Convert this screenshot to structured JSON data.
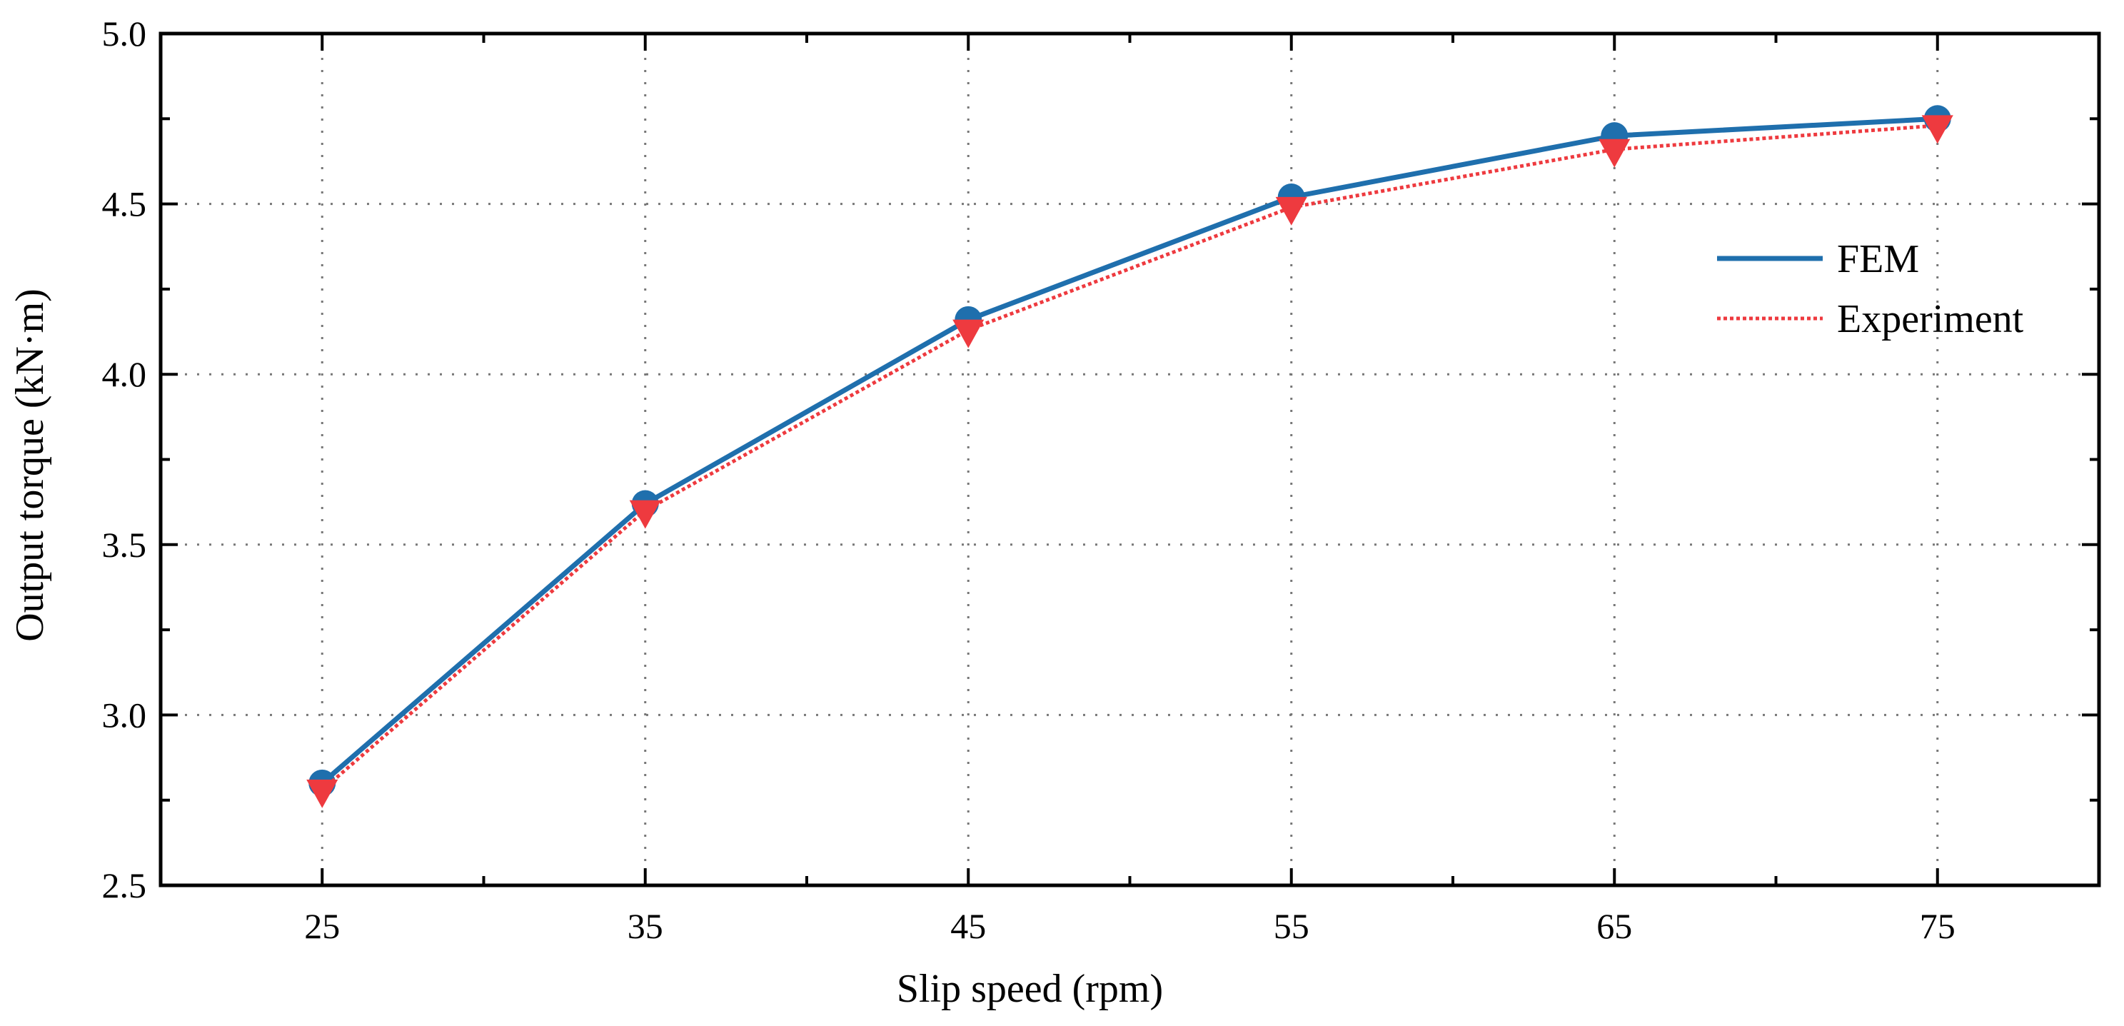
{
  "chart_data": {
    "type": "line",
    "title": "",
    "xlabel": "Slip speed (rpm)",
    "ylabel": "Output torque (kN·m)",
    "xlim": [
      20,
      80
    ],
    "ylim": [
      2.5,
      5.0
    ],
    "x_ticks": [
      "25",
      "35",
      "45",
      "55",
      "65",
      "75"
    ],
    "y_ticks": [
      "2.5",
      "3.0",
      "3.5",
      "4.0",
      "4.5",
      "5.0"
    ],
    "x": [
      25,
      35,
      45,
      55,
      65,
      75
    ],
    "grid": true,
    "legend_position": "top-right",
    "series": [
      {
        "name": "FEM",
        "values": [
          2.8,
          3.62,
          4.16,
          4.52,
          4.7,
          4.75
        ],
        "color": "#1f6fad",
        "line_style": "solid",
        "marker": "circle"
      },
      {
        "name": "Experiment",
        "values": [
          2.78,
          3.6,
          4.13,
          4.49,
          4.66,
          4.73
        ],
        "color": "#ee3a3f",
        "line_style": "dotted",
        "marker": "triangle-down"
      }
    ]
  }
}
